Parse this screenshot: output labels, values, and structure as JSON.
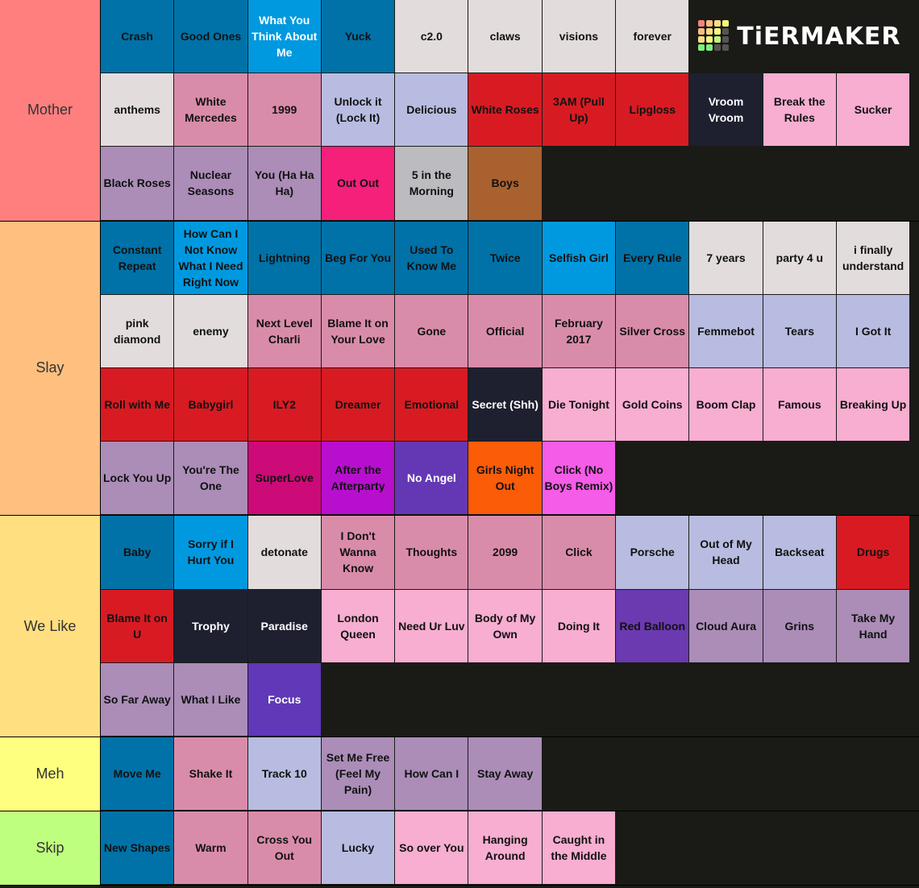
{
  "logo": "TiERMAKER",
  "tiers": [
    {
      "label": "Mother",
      "color": "#ff7f7f",
      "items": [
        {
          "text": "Crash",
          "color": "#0072a8"
        },
        {
          "text": "Good Ones",
          "color": "#0072a8"
        },
        {
          "text": "What You Think About Me",
          "color": "#0099e0",
          "text_color": "#ffffff"
        },
        {
          "text": "Yuck",
          "color": "#0072a8"
        },
        {
          "text": "c2.0",
          "color": "#e3dcdc"
        },
        {
          "text": "claws",
          "color": "#e3dcdc"
        },
        {
          "text": "visions",
          "color": "#e3dcdc"
        },
        {
          "text": "forever",
          "color": "#e3dcdc"
        },
        {
          "text": "anthems",
          "color": "#e3dcdc"
        },
        {
          "text": "White Mercedes",
          "color": "#d98caa"
        },
        {
          "text": "1999",
          "color": "#d98caa"
        },
        {
          "text": "Unlock it (Lock It)",
          "color": "#b8bce0"
        },
        {
          "text": "Delicious",
          "color": "#b8bce0"
        },
        {
          "text": "White Roses",
          "color": "#d81b23"
        },
        {
          "text": "3AM (Pull Up)",
          "color": "#d81b23"
        },
        {
          "text": "Lipgloss",
          "color": "#d81b23"
        },
        {
          "text": "Vroom Vroom",
          "color": "#1e2030",
          "text_color": "#ffffff"
        },
        {
          "text": "Break the Rules",
          "color": "#f7aed0"
        },
        {
          "text": "Sucker",
          "color": "#f7aed0"
        },
        {
          "text": "Black Roses",
          "color": "#ab8db8"
        },
        {
          "text": "Nuclear Seasons",
          "color": "#ab8db8"
        },
        {
          "text": "You (Ha Ha Ha)",
          "color": "#ab8db8"
        },
        {
          "text": "Out Out",
          "color": "#f4207a"
        },
        {
          "text": "5 in the Morning",
          "color": "#bcbcc0"
        },
        {
          "text": "Boys",
          "color": "#a9612f"
        }
      ]
    },
    {
      "label": "Slay",
      "color": "#ffbf7f",
      "items": [
        {
          "text": "Constant Repeat",
          "color": "#0072a8"
        },
        {
          "text": "How Can I Not Know What I Need Right Now",
          "color": "#0099e0"
        },
        {
          "text": "Lightning",
          "color": "#0072a8"
        },
        {
          "text": "Beg For You",
          "color": "#0072a8"
        },
        {
          "text": "Used To Know Me",
          "color": "#0072a8"
        },
        {
          "text": "Twice",
          "color": "#0072a8"
        },
        {
          "text": "Selfish Girl",
          "color": "#0099e0"
        },
        {
          "text": "Every Rule",
          "color": "#0072a8"
        },
        {
          "text": "7 years",
          "color": "#e3dcdc"
        },
        {
          "text": "party 4 u",
          "color": "#e3dcdc"
        },
        {
          "text": "i finally understand",
          "color": "#e3dcdc"
        },
        {
          "text": "pink diamond",
          "color": "#e3dcdc"
        },
        {
          "text": "enemy",
          "color": "#e3dcdc"
        },
        {
          "text": "Next Level Charli",
          "color": "#d98caa"
        },
        {
          "text": "Blame It on Your Love",
          "color": "#d98caa"
        },
        {
          "text": "Gone",
          "color": "#d98caa"
        },
        {
          "text": "Official",
          "color": "#d98caa"
        },
        {
          "text": "February 2017",
          "color": "#d98caa"
        },
        {
          "text": "Silver Cross",
          "color": "#d98caa"
        },
        {
          "text": "Femmebot",
          "color": "#b8bce0"
        },
        {
          "text": "Tears",
          "color": "#b8bce0"
        },
        {
          "text": "I Got It",
          "color": "#b8bce0"
        },
        {
          "text": "Roll with Me",
          "color": "#d81b23"
        },
        {
          "text": "Babygirl",
          "color": "#d81b23"
        },
        {
          "text": "ILY2",
          "color": "#d81b23"
        },
        {
          "text": "Dreamer",
          "color": "#d81b23"
        },
        {
          "text": "Emotional",
          "color": "#d81b23"
        },
        {
          "text": "Secret (Shh)",
          "color": "#1e2030",
          "text_color": "#ffffff"
        },
        {
          "text": "Die Tonight",
          "color": "#f7aed0"
        },
        {
          "text": "Gold Coins",
          "color": "#f7aed0"
        },
        {
          "text": "Boom Clap",
          "color": "#f7aed0"
        },
        {
          "text": "Famous",
          "color": "#f7aed0"
        },
        {
          "text": "Breaking Up",
          "color": "#f7aed0"
        },
        {
          "text": "Lock You Up",
          "color": "#ab8db8"
        },
        {
          "text": "You're The One",
          "color": "#ab8db8"
        },
        {
          "text": "SuperLove",
          "color": "#cc0a78"
        },
        {
          "text": "After the Afterparty",
          "color": "#b80fcf"
        },
        {
          "text": "No Angel",
          "color": "#6438b5",
          "text_color": "#ffffff"
        },
        {
          "text": "Girls Night Out",
          "color": "#fa5c08"
        },
        {
          "text": "Click (No Boys Remix)",
          "color": "#f55ce8"
        }
      ]
    },
    {
      "label": "We Like",
      "color": "#ffdf7f",
      "items": [
        {
          "text": "Baby",
          "color": "#0072a8"
        },
        {
          "text": "Sorry if I Hurt You",
          "color": "#0099e0"
        },
        {
          "text": "detonate",
          "color": "#e3dcdc"
        },
        {
          "text": "I Don't Wanna Know",
          "color": "#d98caa"
        },
        {
          "text": "Thoughts",
          "color": "#d98caa"
        },
        {
          "text": "2099",
          "color": "#d98caa"
        },
        {
          "text": "Click",
          "color": "#d98caa"
        },
        {
          "text": "Porsche",
          "color": "#b8bce0"
        },
        {
          "text": "Out of My Head",
          "color": "#b8bce0"
        },
        {
          "text": "Backseat",
          "color": "#b8bce0"
        },
        {
          "text": "Drugs",
          "color": "#d81b23"
        },
        {
          "text": "Blame It on U",
          "color": "#d81b23"
        },
        {
          "text": "Trophy",
          "color": "#1e2030",
          "text_color": "#ffffff"
        },
        {
          "text": "Paradise",
          "color": "#1e2030",
          "text_color": "#ffffff"
        },
        {
          "text": "London Queen",
          "color": "#f7aed0"
        },
        {
          "text": "Need Ur Luv",
          "color": "#f7aed0"
        },
        {
          "text": "Body of My Own",
          "color": "#f7aed0"
        },
        {
          "text": "Doing It",
          "color": "#f7aed0"
        },
        {
          "text": "Red Balloon",
          "color": "#6b3ab0"
        },
        {
          "text": "Cloud Aura",
          "color": "#ab8db8"
        },
        {
          "text": "Grins",
          "color": "#ab8db8"
        },
        {
          "text": "Take My Hand",
          "color": "#ab8db8"
        },
        {
          "text": "So Far Away",
          "color": "#ab8db8"
        },
        {
          "text": "What I Like",
          "color": "#ab8db8"
        },
        {
          "text": "Focus",
          "color": "#6038b8",
          "text_color": "#ffffff"
        }
      ]
    },
    {
      "label": "Meh",
      "color": "#ffff7f",
      "items": [
        {
          "text": "Move Me",
          "color": "#0072a8"
        },
        {
          "text": "Shake It",
          "color": "#d98caa"
        },
        {
          "text": "Track 10",
          "color": "#b8bce0"
        },
        {
          "text": "Set Me Free (Feel My Pain)",
          "color": "#ab8db8"
        },
        {
          "text": "How Can I",
          "color": "#ab8db8"
        },
        {
          "text": "Stay Away",
          "color": "#ab8db8"
        }
      ]
    },
    {
      "label": "Skip",
      "color": "#bfff7f",
      "items": [
        {
          "text": "New Shapes",
          "color": "#0072a8"
        },
        {
          "text": "Warm",
          "color": "#d98caa"
        },
        {
          "text": "Cross You Out",
          "color": "#d98caa"
        },
        {
          "text": "Lucky",
          "color": "#b8bce0"
        },
        {
          "text": "So over You",
          "color": "#f7aed0"
        },
        {
          "text": "Hanging Around",
          "color": "#f7aed0"
        },
        {
          "text": "Caught in the Middle",
          "color": "#f7aed0"
        }
      ]
    }
  ]
}
